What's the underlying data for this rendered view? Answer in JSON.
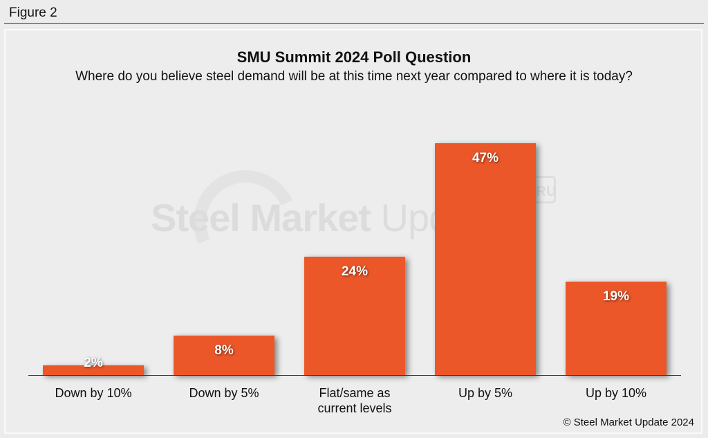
{
  "figure_label": "Figure 2",
  "copyright": "© Steel Market Update 2024",
  "watermark": {
    "bold": "Steel Market",
    "light": "Update",
    "badge": "CRU"
  },
  "colors": {
    "bar": "#ec5729",
    "background": "#ececec"
  },
  "chart_data": {
    "type": "bar",
    "title": "SMU Summit 2024 Poll Question",
    "subtitle": "Where do you believe steel demand will be at this time next year compared to where it is today?",
    "categories": [
      "Down by 10%",
      "Down by 5%",
      "Flat/same as current levels",
      "Up by 5%",
      "Up by 10%"
    ],
    "values": [
      2,
      8,
      24,
      47,
      19
    ],
    "labels": [
      "2%",
      "8%",
      "24%",
      "47%",
      "19%"
    ],
    "xlabel": "",
    "ylabel": "",
    "ylim": [
      0,
      50
    ],
    "grid": false,
    "unit": "%"
  }
}
